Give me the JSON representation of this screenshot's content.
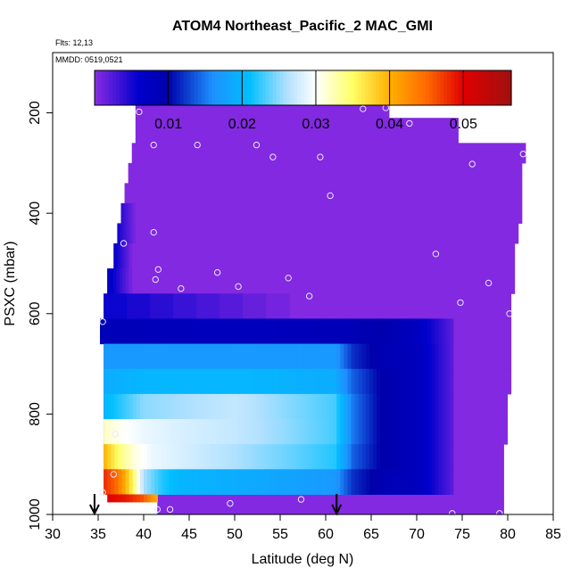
{
  "chart_data": {
    "type": "heatmap",
    "title": "ATOM4 Northeast_Pacific_2 MAC_GMI",
    "annotations": [
      "Flts: 12,13",
      "MMDD: 0519,0521"
    ],
    "xlabel": "Latitude (deg N)",
    "ylabel": "PSXC (mbar)",
    "xlim": [
      30,
      85
    ],
    "ylim": [
      1000,
      80
    ],
    "x_ticks": [
      30,
      35,
      40,
      45,
      50,
      55,
      60,
      65,
      70,
      75,
      80,
      85
    ],
    "y_ticks": [
      200,
      400,
      600,
      800,
      1000
    ],
    "colorbar": {
      "range": [
        0,
        0.0565
      ],
      "ticks": [
        0.01,
        0.02,
        0.03,
        0.04,
        0.05
      ],
      "tick_labels": [
        "0.01",
        "0.02",
        "0.03",
        "0.04",
        "0.05"
      ],
      "stops": [
        {
          "v": 0.0,
          "color": "#8a2be2"
        },
        {
          "v": 0.006,
          "color": "#0000cd"
        },
        {
          "v": 0.01,
          "color": "#0000aa"
        },
        {
          "v": 0.016,
          "color": "#1e90ff"
        },
        {
          "v": 0.021,
          "color": "#00bfff"
        },
        {
          "v": 0.026,
          "color": "#b0e0ff"
        },
        {
          "v": 0.03,
          "color": "#ffffff"
        },
        {
          "v": 0.035,
          "color": "#ffff66"
        },
        {
          "v": 0.04,
          "color": "#ffb000"
        },
        {
          "v": 0.045,
          "color": "#ff6a00"
        },
        {
          "v": 0.05,
          "color": "#e00000"
        },
        {
          "v": 0.0565,
          "color": "#a01010"
        }
      ]
    },
    "background_value": 0.0003,
    "coverage": [
      {
        "p0": 170,
        "p1": 210,
        "lat0": 39.1,
        "lat1": 67.0
      },
      {
        "p0": 210,
        "p1": 260,
        "lat0": 39.1,
        "lat1": 74.6
      },
      {
        "p0": 260,
        "p1": 300,
        "lat0": 38.7,
        "lat1": 82.0
      },
      {
        "p0": 300,
        "p1": 340,
        "lat0": 38.3,
        "lat1": 81.6
      },
      {
        "p0": 340,
        "p1": 380,
        "lat0": 37.9,
        "lat1": 81.6
      },
      {
        "p0": 380,
        "p1": 420,
        "lat0": 37.5,
        "lat1": 81.6
      },
      {
        "p0": 420,
        "p1": 460,
        "lat0": 37.1,
        "lat1": 81.2
      },
      {
        "p0": 460,
        "p1": 510,
        "lat0": 36.7,
        "lat1": 80.8
      },
      {
        "p0": 510,
        "p1": 560,
        "lat0": 36.0,
        "lat1": 80.8
      },
      {
        "p0": 560,
        "p1": 610,
        "lat0": 35.6,
        "lat1": 80.4
      },
      {
        "p0": 610,
        "p1": 660,
        "lat0": 35.2,
        "lat1": 80.4
      },
      {
        "p0": 660,
        "p1": 710,
        "lat0": 35.6,
        "lat1": 80.4
      },
      {
        "p0": 710,
        "p1": 760,
        "lat0": 35.6,
        "lat1": 80.4
      },
      {
        "p0": 760,
        "p1": 810,
        "lat0": 35.6,
        "lat1": 80.0
      },
      {
        "p0": 810,
        "p1": 860,
        "lat0": 35.6,
        "lat1": 80.0
      },
      {
        "p0": 860,
        "p1": 910,
        "lat0": 35.6,
        "lat1": 79.6
      },
      {
        "p0": 910,
        "p1": 960,
        "lat0": 35.6,
        "lat1": 79.6
      },
      {
        "p0": 960,
        "p1": 1000,
        "lat0": 41.5,
        "lat1": 79.6
      }
    ],
    "plumes": [
      {
        "p0": 610,
        "p1": 660,
        "lat0": 35.2,
        "lat1": 74.0,
        "pts": [
          [
            35.2,
            0.0085
          ],
          [
            45,
            0.008
          ],
          [
            55,
            0.008
          ],
          [
            62,
            0.0085
          ],
          [
            66,
            0.0095
          ],
          [
            70,
            0.0075
          ],
          [
            74,
            0.002
          ]
        ]
      },
      {
        "p0": 660,
        "p1": 710,
        "lat0": 35.6,
        "lat1": 74.0,
        "pts": [
          [
            35.6,
            0.017
          ],
          [
            40,
            0.017
          ],
          [
            52,
            0.017
          ],
          [
            61,
            0.017
          ],
          [
            63,
            0.012
          ],
          [
            66,
            0.009
          ],
          [
            70,
            0.008
          ],
          [
            74,
            0.002
          ]
        ]
      },
      {
        "p0": 710,
        "p1": 760,
        "lat0": 35.6,
        "lat1": 74.0,
        "pts": [
          [
            35.6,
            0.019
          ],
          [
            40,
            0.02
          ],
          [
            52,
            0.02
          ],
          [
            61,
            0.019
          ],
          [
            63,
            0.014
          ],
          [
            66,
            0.01
          ],
          [
            70,
            0.008
          ],
          [
            74,
            0.002
          ]
        ]
      },
      {
        "p0": 760,
        "p1": 810,
        "lat0": 35.6,
        "lat1": 74.0,
        "pts": [
          [
            35.6,
            0.02
          ],
          [
            40,
            0.025
          ],
          [
            50,
            0.027
          ],
          [
            61,
            0.023
          ],
          [
            63,
            0.015
          ],
          [
            66,
            0.01
          ],
          [
            70,
            0.008
          ],
          [
            74,
            0.002
          ]
        ]
      },
      {
        "p0": 810,
        "p1": 860,
        "lat0": 35.6,
        "lat1": 74.0,
        "pts": [
          [
            35.6,
            0.032
          ],
          [
            38,
            0.03
          ],
          [
            40,
            0.029
          ],
          [
            44,
            0.028
          ],
          [
            50,
            0.027
          ],
          [
            56,
            0.025
          ],
          [
            61,
            0.023
          ],
          [
            63,
            0.015
          ],
          [
            66,
            0.01
          ],
          [
            70,
            0.008
          ],
          [
            74,
            0.002
          ]
        ]
      },
      {
        "p0": 860,
        "p1": 910,
        "lat0": 35.6,
        "lat1": 74.0,
        "pts": [
          [
            35.6,
            0.04
          ],
          [
            36.5,
            0.037
          ],
          [
            37.5,
            0.034
          ],
          [
            39,
            0.031
          ],
          [
            41,
            0.029
          ],
          [
            44,
            0.028
          ],
          [
            50,
            0.026
          ],
          [
            56,
            0.024
          ],
          [
            61,
            0.022
          ],
          [
            63,
            0.014
          ],
          [
            66,
            0.01
          ],
          [
            70,
            0.008
          ],
          [
            74,
            0.002
          ]
        ]
      },
      {
        "p0": 910,
        "p1": 960,
        "lat0": 35.6,
        "lat1": 74.0,
        "pts": [
          [
            35.6,
            0.048
          ],
          [
            37,
            0.045
          ],
          [
            38,
            0.04
          ],
          [
            39,
            0.034
          ],
          [
            40,
            0.026
          ],
          [
            42,
            0.022
          ],
          [
            44,
            0.02
          ],
          [
            50,
            0.019
          ],
          [
            56,
            0.018
          ],
          [
            61,
            0.017
          ],
          [
            63,
            0.012
          ],
          [
            66,
            0.009
          ],
          [
            70,
            0.008
          ],
          [
            74,
            0.002
          ]
        ]
      },
      {
        "p0": 960,
        "p1": 975,
        "lat0": 36.0,
        "lat1": 41.5,
        "pts": [
          [
            36.0,
            0.05
          ],
          [
            38,
            0.049
          ],
          [
            40,
            0.046
          ],
          [
            41.5,
            0.04
          ]
        ]
      }
    ],
    "left_gradient": [
      {
        "p0": 380,
        "p1": 420,
        "lat0": 37.5,
        "lat1": 39.1,
        "v": 0.004
      },
      {
        "p0": 420,
        "p1": 460,
        "lat0": 37.1,
        "lat1": 39.1,
        "v": 0.005
      },
      {
        "p0": 460,
        "p1": 510,
        "lat0": 36.7,
        "lat1": 38.7,
        "v": 0.006
      },
      {
        "p0": 510,
        "p1": 560,
        "lat0": 36.0,
        "lat1": 38.7,
        "v": 0.007
      },
      {
        "p0": 560,
        "p1": 610,
        "lat0": 35.6,
        "lat1": 56.0,
        "v": 0.0055
      }
    ],
    "points": [
      [
        39.5,
        198
      ],
      [
        41.1,
        264
      ],
      [
        45.9,
        264
      ],
      [
        52.4,
        264
      ],
      [
        54.2,
        288
      ],
      [
        59.4,
        288
      ],
      [
        64.1,
        192
      ],
      [
        66.6,
        190
      ],
      [
        69.2,
        221
      ],
      [
        76.1,
        302
      ],
      [
        81.7,
        282
      ],
      [
        60.5,
        365
      ],
      [
        41.1,
        438
      ],
      [
        37.8,
        460
      ],
      [
        41.6,
        512
      ],
      [
        41.3,
        532
      ],
      [
        44.1,
        550
      ],
      [
        48.1,
        518
      ],
      [
        50.4,
        546
      ],
      [
        55.9,
        529
      ],
      [
        58.2,
        565
      ],
      [
        72.1,
        481
      ],
      [
        74.8,
        578
      ],
      [
        77.9,
        539
      ],
      [
        80.2,
        600
      ],
      [
        35.5,
        616
      ],
      [
        36.7,
        920
      ],
      [
        36.9,
        840
      ],
      [
        35.5,
        956
      ],
      [
        41.5,
        990
      ],
      [
        42.9,
        990
      ],
      [
        49.5,
        978
      ],
      [
        57.3,
        970
      ],
      [
        73.9,
        998
      ],
      [
        79.1,
        998
      ]
    ],
    "arrows_lat": [
      34.6,
      61.2
    ]
  }
}
